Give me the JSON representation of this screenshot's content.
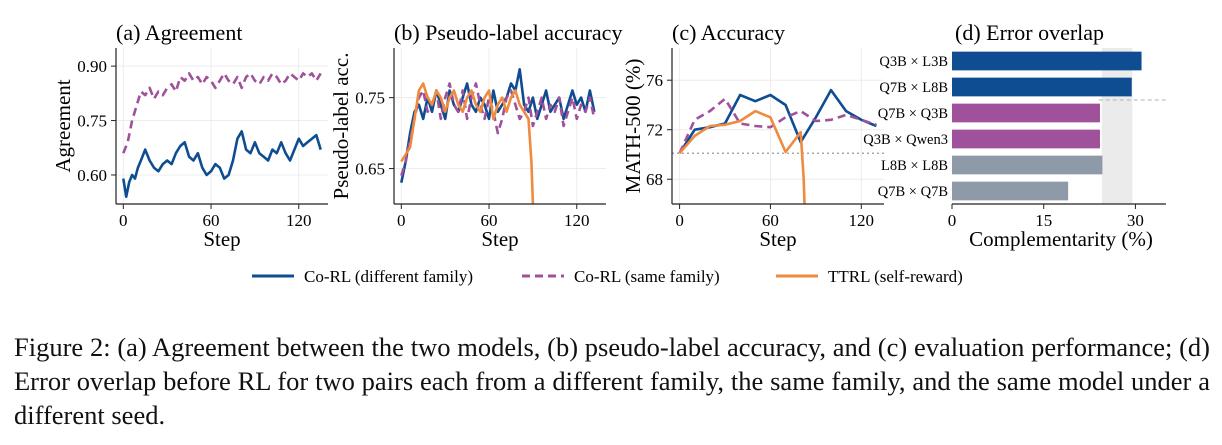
{
  "figure": {
    "caption": "Figure 2: (a) Agreement between the two models, (b) pseudo-label accuracy, and (c) evaluation performance; (d) Error overlap before RL for two pairs each from a different family, the same family, and the same model under a different seed.",
    "legend": [
      {
        "name": "Co-RL (different family)",
        "color": "#0e4d92",
        "dash": "solid"
      },
      {
        "name": "Co-RL (same family)",
        "color": "#a0519b",
        "dash": "dashed"
      },
      {
        "name": "TTRL (self-reward)",
        "color": "#ef8a3f",
        "dash": "solid"
      }
    ]
  },
  "chart_data": [
    {
      "type": "line",
      "title": "(a) Agreement",
      "xlabel": "Step",
      "ylabel": "Agreement",
      "xlim": [
        -5,
        140
      ],
      "ylim": [
        0.52,
        0.95
      ],
      "xticks": [
        0,
        60,
        120
      ],
      "yticks": [
        0.6,
        0.75,
        0.9
      ],
      "yticklabels": [
        "0.60",
        "0.75",
        "0.90"
      ],
      "grid": true,
      "series": [
        {
          "name": "Co-RL (different family)",
          "color": "#0e4d92",
          "dash": "solid",
          "x": [
            0,
            2,
            4,
            6,
            8,
            10,
            12,
            15,
            18,
            21,
            24,
            27,
            30,
            33,
            36,
            39,
            42,
            45,
            48,
            51,
            54,
            57,
            60,
            63,
            66,
            69,
            72,
            75,
            78,
            81,
            84,
            87,
            90,
            93,
            96,
            99,
            102,
            105,
            108,
            111,
            114,
            117,
            120,
            123,
            126,
            129,
            132,
            135
          ],
          "y": [
            0.59,
            0.54,
            0.58,
            0.6,
            0.59,
            0.62,
            0.64,
            0.67,
            0.64,
            0.62,
            0.61,
            0.63,
            0.64,
            0.63,
            0.66,
            0.68,
            0.69,
            0.65,
            0.64,
            0.66,
            0.62,
            0.6,
            0.61,
            0.63,
            0.62,
            0.59,
            0.6,
            0.64,
            0.7,
            0.72,
            0.67,
            0.66,
            0.69,
            0.66,
            0.65,
            0.64,
            0.67,
            0.66,
            0.69,
            0.66,
            0.64,
            0.67,
            0.7,
            0.68,
            0.69,
            0.7,
            0.71,
            0.67
          ]
        },
        {
          "name": "Co-RL (same family)",
          "color": "#a0519b",
          "dash": "dashed",
          "x": [
            0,
            3,
            6,
            9,
            12,
            15,
            18,
            21,
            24,
            27,
            30,
            33,
            36,
            39,
            42,
            45,
            48,
            51,
            54,
            57,
            60,
            63,
            66,
            69,
            72,
            75,
            78,
            81,
            84,
            87,
            90,
            93,
            96,
            99,
            102,
            105,
            108,
            111,
            114,
            117,
            120,
            123,
            126,
            129,
            132,
            135
          ],
          "y": [
            0.66,
            0.69,
            0.75,
            0.79,
            0.83,
            0.82,
            0.84,
            0.81,
            0.83,
            0.82,
            0.84,
            0.85,
            0.83,
            0.87,
            0.86,
            0.88,
            0.86,
            0.87,
            0.85,
            0.87,
            0.86,
            0.84,
            0.86,
            0.88,
            0.86,
            0.85,
            0.87,
            0.84,
            0.87,
            0.88,
            0.86,
            0.85,
            0.87,
            0.86,
            0.88,
            0.87,
            0.85,
            0.86,
            0.88,
            0.87,
            0.86,
            0.88,
            0.87,
            0.88,
            0.86,
            0.88
          ]
        }
      ]
    },
    {
      "type": "line",
      "title": "(b) Pseudo-label accuracy",
      "xlabel": "Step",
      "ylabel": "Pseudo-label acc.",
      "xlim": [
        -5,
        140
      ],
      "ylim": [
        0.6,
        0.82
      ],
      "xticks": [
        0,
        60,
        120
      ],
      "yticks": [
        0.65,
        0.75
      ],
      "yticklabels": [
        "0.65",
        "0.75"
      ],
      "grid": true,
      "series": [
        {
          "name": "Co-RL (different family)",
          "color": "#0e4d92",
          "dash": "solid",
          "x": [
            0,
            3,
            6,
            9,
            12,
            15,
            18,
            21,
            24,
            27,
            30,
            33,
            36,
            39,
            42,
            45,
            48,
            51,
            54,
            57,
            60,
            63,
            66,
            69,
            72,
            75,
            78,
            81,
            84,
            87,
            90,
            93,
            96,
            99,
            102,
            105,
            108,
            111,
            114,
            117,
            120,
            123,
            126,
            129,
            132
          ],
          "y": [
            0.63,
            0.66,
            0.7,
            0.73,
            0.74,
            0.72,
            0.75,
            0.73,
            0.76,
            0.74,
            0.72,
            0.76,
            0.74,
            0.73,
            0.75,
            0.77,
            0.74,
            0.73,
            0.75,
            0.74,
            0.72,
            0.76,
            0.73,
            0.74,
            0.75,
            0.77,
            0.76,
            0.79,
            0.74,
            0.73,
            0.75,
            0.72,
            0.74,
            0.76,
            0.73,
            0.74,
            0.75,
            0.72,
            0.74,
            0.76,
            0.74,
            0.75,
            0.73,
            0.76,
            0.73
          ]
        },
        {
          "name": "Co-RL (same family)",
          "color": "#a0519b",
          "dash": "dashed",
          "x": [
            0,
            3,
            6,
            9,
            12,
            15,
            18,
            21,
            24,
            27,
            30,
            33,
            36,
            39,
            42,
            45,
            48,
            51,
            54,
            57,
            60,
            63,
            66,
            69,
            72,
            75,
            78,
            81,
            84,
            87,
            90,
            93,
            96,
            99,
            102,
            105,
            108,
            111,
            114,
            117,
            120,
            123,
            126,
            129,
            132
          ],
          "y": [
            0.64,
            0.66,
            0.69,
            0.72,
            0.75,
            0.76,
            0.73,
            0.74,
            0.76,
            0.72,
            0.75,
            0.77,
            0.74,
            0.73,
            0.76,
            0.72,
            0.75,
            0.77,
            0.74,
            0.72,
            0.75,
            0.73,
            0.7,
            0.72,
            0.75,
            0.76,
            0.74,
            0.72,
            0.73,
            0.75,
            0.71,
            0.73,
            0.75,
            0.72,
            0.74,
            0.73,
            0.75,
            0.71,
            0.73,
            0.75,
            0.72,
            0.74,
            0.73,
            0.75,
            0.72
          ]
        },
        {
          "name": "TTRL (self-reward)",
          "color": "#ef8a3f",
          "dash": "solid",
          "x": [
            0,
            3,
            6,
            9,
            12,
            15,
            18,
            21,
            24,
            27,
            30,
            33,
            36,
            39,
            42,
            45,
            48,
            51,
            54,
            57,
            60,
            63,
            66,
            69,
            72,
            75,
            78,
            81,
            84,
            87,
            89,
            90
          ],
          "y": [
            0.66,
            0.67,
            0.68,
            0.72,
            0.76,
            0.77,
            0.75,
            0.74,
            0.76,
            0.75,
            0.73,
            0.75,
            0.76,
            0.74,
            0.73,
            0.75,
            0.76,
            0.74,
            0.73,
            0.75,
            0.76,
            0.72,
            0.74,
            0.75,
            0.73,
            0.75,
            0.76,
            0.74,
            0.73,
            0.72,
            0.66,
            0.6
          ]
        }
      ]
    },
    {
      "type": "line",
      "title": "(c) Accuracy",
      "xlabel": "Step",
      "ylabel": "MATH-500 (%)",
      "xlim": [
        -5,
        135
      ],
      "ylim": [
        66.0,
        78.6
      ],
      "xticks": [
        0,
        60,
        120
      ],
      "yticks": [
        68,
        72,
        76
      ],
      "yticklabels": [
        "68",
        "72",
        "76"
      ],
      "grid": true,
      "reference_y": 70.1,
      "series": [
        {
          "name": "Co-RL (different family)",
          "color": "#0e4d92",
          "dash": "solid",
          "x": [
            0,
            10,
            20,
            30,
            40,
            50,
            60,
            70,
            80,
            90,
            100,
            110,
            120,
            130
          ],
          "y": [
            70.1,
            72.0,
            72.2,
            72.5,
            74.8,
            74.3,
            74.8,
            74.0,
            71.0,
            73.0,
            75.2,
            73.5,
            72.8,
            72.3
          ]
        },
        {
          "name": "Co-RL (same family)",
          "color": "#a0519b",
          "dash": "dashed",
          "x": [
            0,
            10,
            20,
            30,
            40,
            50,
            60,
            70,
            80,
            90,
            100,
            110,
            120,
            130
          ],
          "y": [
            70.1,
            72.8,
            73.5,
            74.5,
            72.5,
            72.3,
            72.2,
            73.0,
            73.5,
            72.7,
            72.8,
            73.2,
            72.8,
            72.4
          ]
        },
        {
          "name": "TTRL (self-reward)",
          "color": "#ef8a3f",
          "dash": "solid",
          "x": [
            0,
            10,
            20,
            30,
            40,
            50,
            60,
            70,
            80,
            82,
            83
          ],
          "y": [
            70.1,
            71.5,
            72.3,
            72.4,
            72.7,
            73.5,
            73.0,
            70.2,
            71.8,
            68.0,
            64.0
          ]
        }
      ]
    },
    {
      "type": "bar",
      "title": "(d) Error overlap",
      "xlabel": "Complementarity (%)",
      "ylabel": "",
      "xlim": [
        0,
        35
      ],
      "xticks": [
        0,
        15,
        30
      ],
      "shaded_x": [
        24.5,
        29.5
      ],
      "separator_after_index": 1,
      "categories": [
        "Q3B × L3B",
        "Q7B × L8B",
        "Q7B × Q3B",
        "Q3B × Qwen3",
        "L8B × L8B",
        "Q7B × Q7B"
      ],
      "values": [
        31.0,
        29.4,
        24.2,
        24.2,
        24.6,
        19.0
      ],
      "colors": [
        "#0e4d92",
        "#0e4d92",
        "#a0519b",
        "#a0519b",
        "#8e9aa8",
        "#8e9aa8"
      ]
    }
  ]
}
